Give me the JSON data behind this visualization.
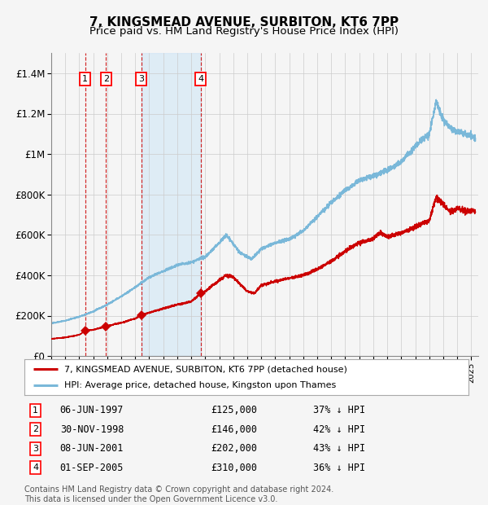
{
  "title": "7, KINGSMEAD AVENUE, SURBITON, KT6 7PP",
  "subtitle": "Price paid vs. HM Land Registry's House Price Index (HPI)",
  "xlim": [
    1995.0,
    2025.5
  ],
  "ylim": [
    0,
    1500000
  ],
  "yticks": [
    0,
    200000,
    400000,
    600000,
    800000,
    1000000,
    1200000,
    1400000
  ],
  "ytick_labels": [
    "£0",
    "£200K",
    "£400K",
    "£600K",
    "£800K",
    "£1M",
    "£1.2M",
    "£1.4M"
  ],
  "sale_dates_num": [
    1997.43,
    1998.92,
    2001.44,
    2005.67
  ],
  "sale_prices": [
    125000,
    146000,
    202000,
    310000
  ],
  "sale_labels": [
    "1",
    "2",
    "3",
    "4"
  ],
  "sale_date_strs": [
    "06-JUN-1997",
    "30-NOV-1998",
    "08-JUN-2001",
    "01-SEP-2005"
  ],
  "sale_price_strs": [
    "£125,000",
    "£146,000",
    "£202,000",
    "£310,000"
  ],
  "sale_hpi_strs": [
    "37% ↓ HPI",
    "42% ↓ HPI",
    "43% ↓ HPI",
    "36% ↓ HPI"
  ],
  "hpi_color": "#7ab8d9",
  "price_color": "#cc0000",
  "background_color": "#f5f5f5",
  "grid_color": "#cccccc",
  "vline_color": "#cc0000",
  "shade_color": "#cce5f5",
  "legend_label_price": "7, KINGSMEAD AVENUE, SURBITON, KT6 7PP (detached house)",
  "legend_label_hpi": "HPI: Average price, detached house, Kingston upon Thames",
  "footnote": "Contains HM Land Registry data © Crown copyright and database right 2024.\nThis data is licensed under the Open Government Licence v3.0.",
  "title_fontsize": 11,
  "subtitle_fontsize": 9.5,
  "axis_fontsize": 8.5
}
